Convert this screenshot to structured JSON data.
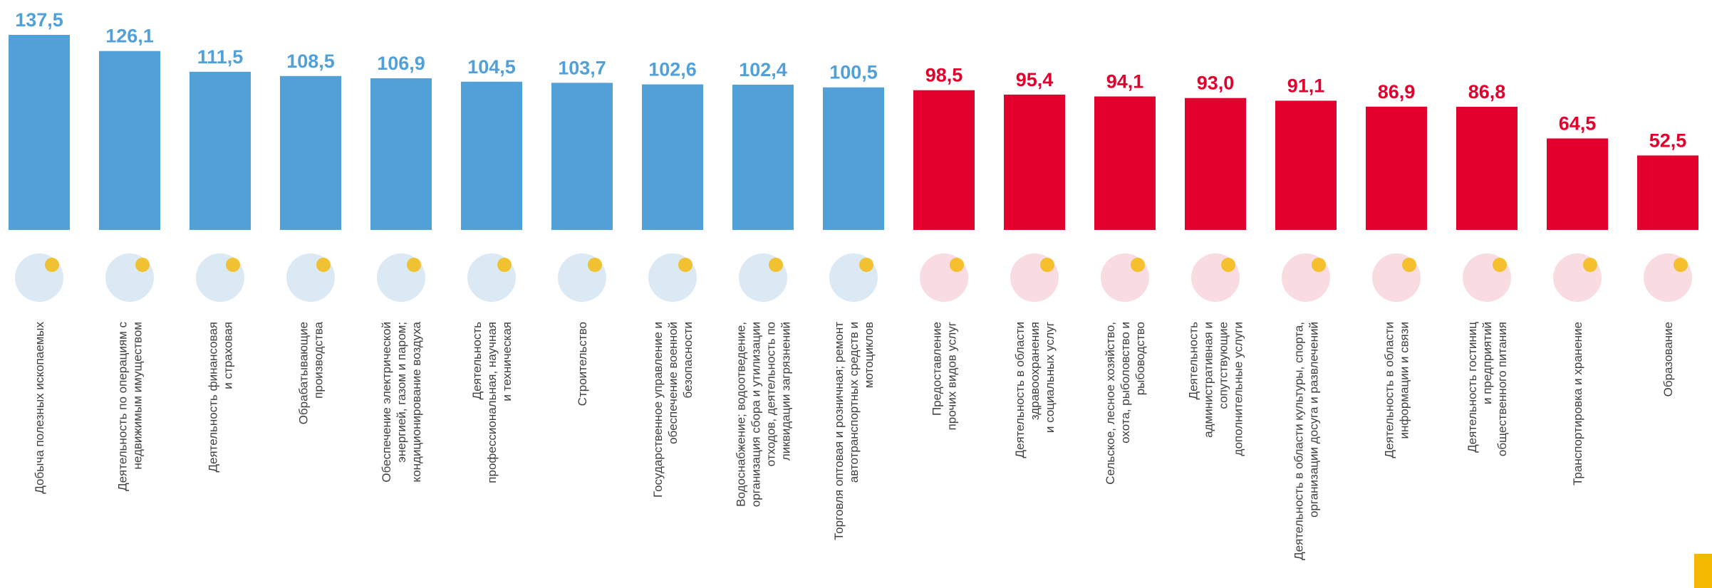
{
  "chart_data": {
    "type": "bar",
    "categories": [
      [
        "Добыча полезных ископаемых"
      ],
      [
        "Деятельность по операциям с",
        "недвижимым имуществом"
      ],
      [
        "Деятельность финансовая",
        "и страховая"
      ],
      [
        "Обрабатывающие",
        "производства"
      ],
      [
        "Обеспечение электрической",
        "энергией, газом и паром;",
        "кондиционирование воздуха"
      ],
      [
        "Деятельность",
        "профессиональная,  научная",
        "и техническая"
      ],
      [
        "Строительство"
      ],
      [
        "Государственное управление и",
        "обеспечение военной",
        "безопасности"
      ],
      [
        "Водоснабжение; водоотведение,",
        "организация сбора и утилизации",
        "отходов, деятельность по",
        "ликвидации загрязнений"
      ],
      [
        "Торговля оптовая и розничная; ремонт",
        "автотранспортных средств и",
        "мотоциклов"
      ],
      [
        "Предоставление",
        "прочих видов услуг"
      ],
      [
        "Деятельность в области",
        "здравоохранения",
        "и социальных услуг"
      ],
      [
        "Сельское, лесное хозяйство,",
        "охота, рыболовство и",
        "рыбоводство"
      ],
      [
        "Деятельность",
        "административная  и",
        "сопутствующие",
        "дополнительные услуги"
      ],
      [
        "Деятельность в области культуры, спорта,",
        "организации досуга  и развлечений"
      ],
      [
        "Деятельность  в области",
        "информации и связи"
      ],
      [
        "Деятельность гостиниц",
        "и предприятий",
        "общественного питания"
      ],
      [
        "Транспортировка и хранение"
      ],
      [
        "Образование"
      ]
    ],
    "values": [
      137.5,
      126.1,
      111.5,
      108.5,
      106.9,
      104.5,
      103.7,
      102.6,
      102.4,
      100.5,
      98.5,
      95.4,
      94.1,
      93.0,
      91.1,
      86.9,
      86.8,
      64.5,
      52.5
    ],
    "value_labels": [
      "137,5",
      "126,1",
      "111,5",
      "108,5",
      "106,9",
      "104,5",
      "103,7",
      "102,6",
      "102,4",
      "100,5",
      "98,5",
      "95,4",
      "94,1",
      "93,0",
      "91,1",
      "86,9",
      "86,8",
      "64,5",
      "52,5"
    ],
    "colors": [
      "#52a0d8",
      "#52a0d8",
      "#52a0d8",
      "#52a0d8",
      "#52a0d8",
      "#52a0d8",
      "#52a0d8",
      "#52a0d8",
      "#52a0d8",
      "#52a0d8",
      "#e2002d",
      "#e2002d",
      "#e2002d",
      "#e2002d",
      "#e2002d",
      "#e2002d",
      "#e2002d",
      "#e2002d",
      "#e2002d"
    ]
  }
}
